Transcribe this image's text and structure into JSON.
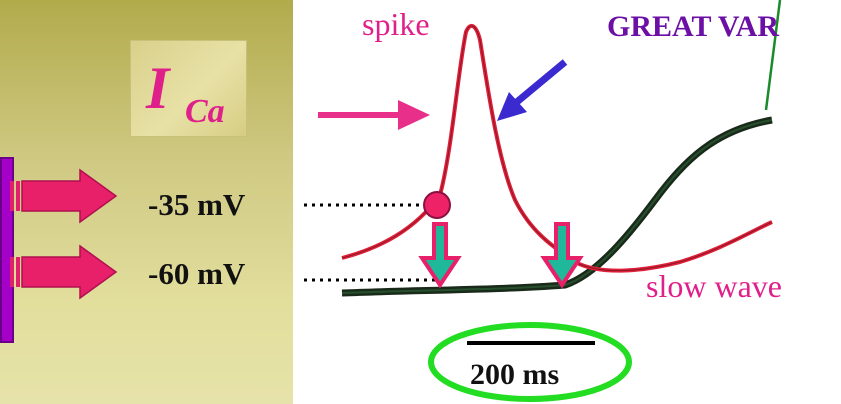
{
  "current_label": {
    "main": "I",
    "subscript": "Ca"
  },
  "voltages": {
    "v1": "-35 mV",
    "v2": "-60 mV"
  },
  "annotations": {
    "spike": "spike",
    "slow_wave": "slow wave",
    "great_var": "GREAT VAR"
  },
  "scale_bar": {
    "label": "200 ms"
  },
  "colors": {
    "panel": "#cfc983",
    "magenta": "#e0208a",
    "red_trace": "#e0203a",
    "dark_trace": "#1a2a1a",
    "blue_arrow": "#3a2ad0",
    "green_ellipse": "#22dd22",
    "purple_bar": "#a400c8",
    "teal": "#20b89a"
  }
}
